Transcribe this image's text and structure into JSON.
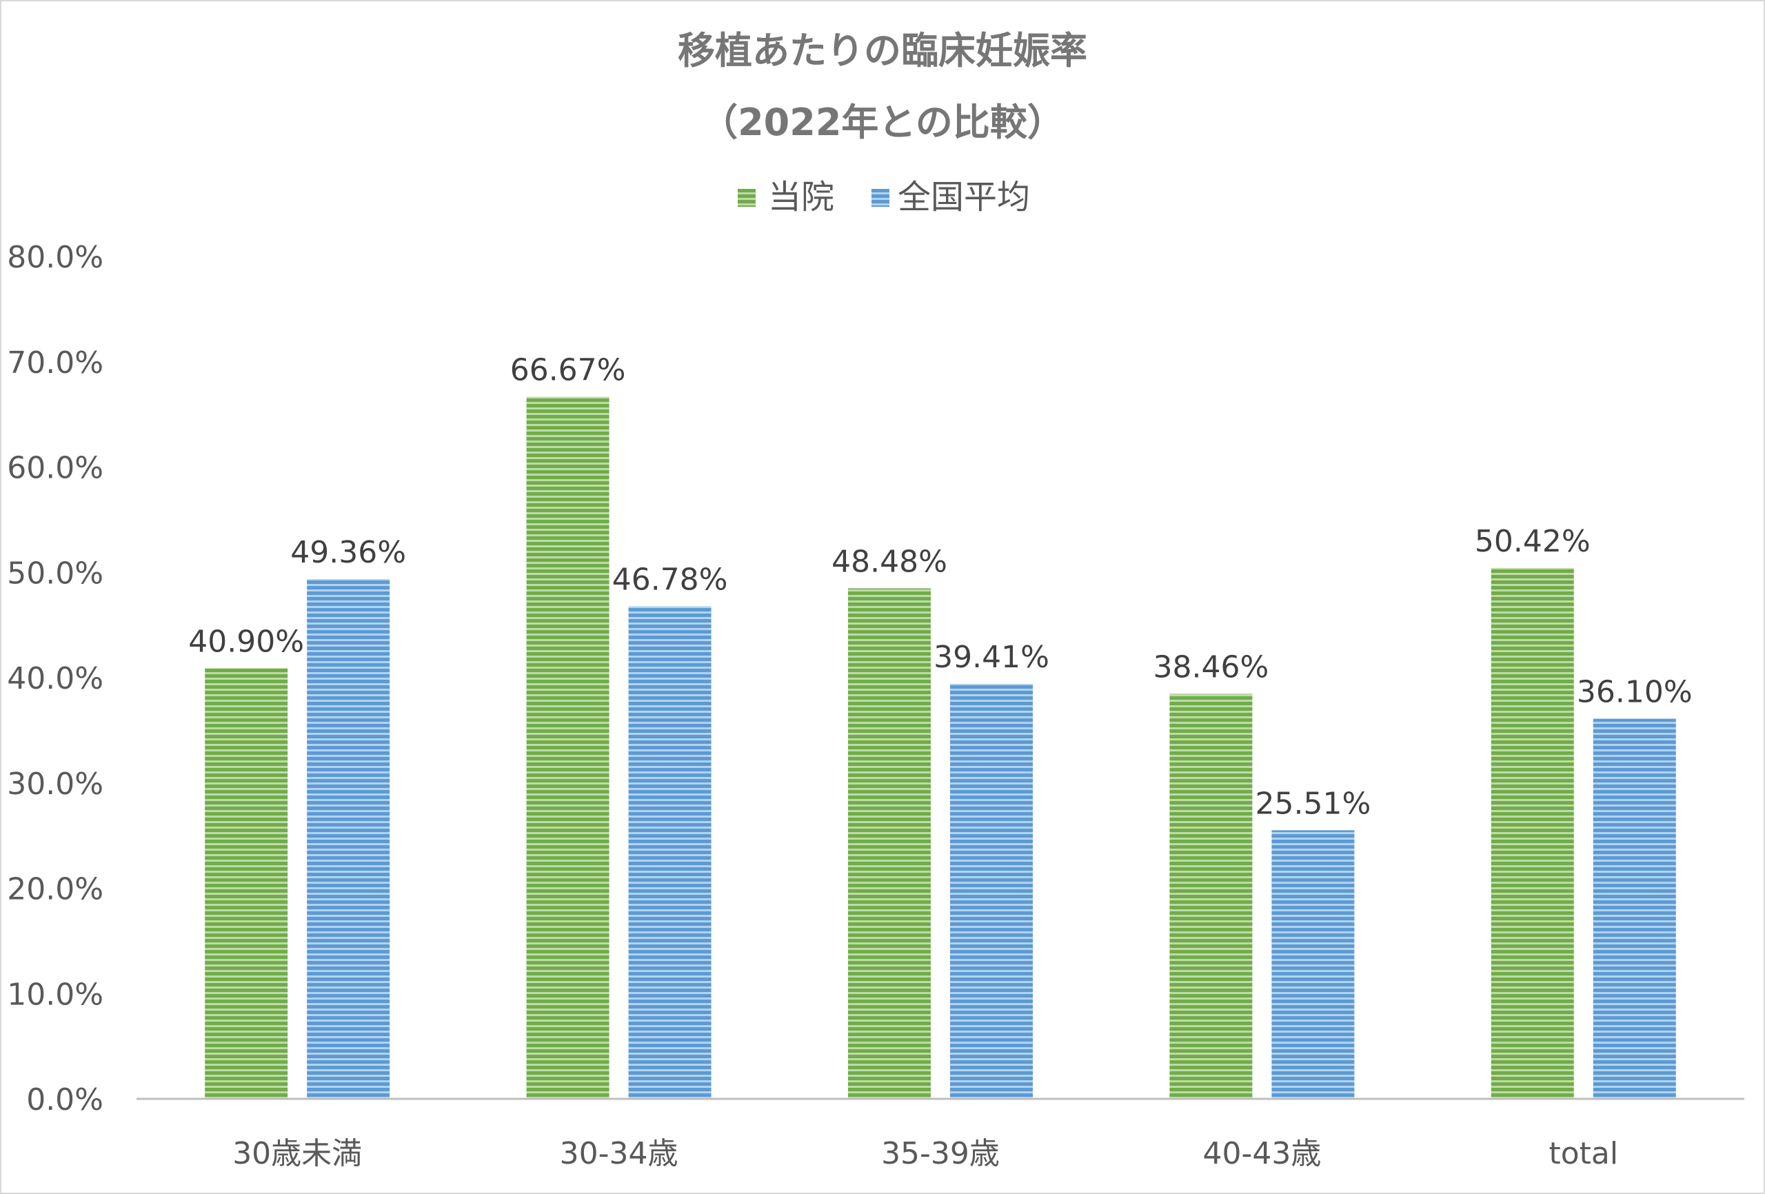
{
  "chart_data": {
    "type": "bar",
    "title": "移植あたりの臨床妊娠率",
    "subtitle": "（2022年との比較）",
    "xlabel": "",
    "ylabel": "",
    "categories": [
      "30歳未満",
      "30-34歳",
      "35-39歳",
      "40-43歳",
      "total"
    ],
    "series": [
      {
        "name": "当院",
        "color": "#70ad47",
        "values": [
          40.9,
          66.67,
          48.48,
          38.46,
          50.42
        ],
        "labels": [
          "40.90%",
          "66.67%",
          "48.48%",
          "38.46%",
          "50.42%"
        ]
      },
      {
        "name": "全国平均",
        "color": "#5b9bd5",
        "values": [
          49.36,
          46.78,
          39.41,
          25.51,
          36.1
        ],
        "labels": [
          "49.36%",
          "46.78%",
          "39.41%",
          "25.51%",
          "36.10%"
        ]
      }
    ],
    "ylim": [
      0,
      80
    ],
    "yticks": [
      0,
      10,
      20,
      30,
      40,
      50,
      60,
      70,
      80
    ],
    "ytick_labels": [
      "0.0%",
      "10.0%",
      "20.0%",
      "30.0%",
      "40.0%",
      "50.0%",
      "60.0%",
      "70.0%",
      "80.0%"
    ],
    "grid": false,
    "legend_position": "top-center",
    "bar_fill": "horizontal-stripes"
  }
}
